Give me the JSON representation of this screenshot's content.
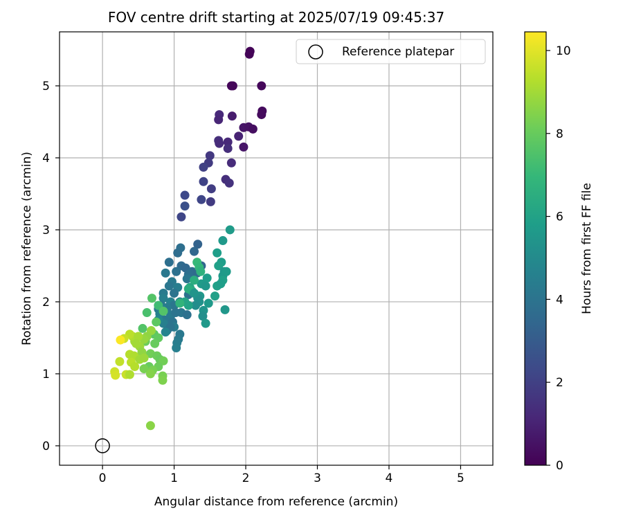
{
  "chart_data": {
    "type": "scatter",
    "title": "FOV centre drift starting at 2025/07/19 09:45:37",
    "xlabel": "Angular distance from reference (arcmin)",
    "ylabel": "Rotation from reference (arcmin)",
    "xlim": [
      -0.6,
      5.45
    ],
    "ylim": [
      -0.27,
      5.75
    ],
    "xticks": [
      0,
      1,
      2,
      3,
      4,
      5
    ],
    "yticks": [
      0,
      1,
      2,
      3,
      4,
      5
    ],
    "xtick_labels": [
      "0",
      "1",
      "2",
      "3",
      "4",
      "5"
    ],
    "ytick_labels": [
      "0",
      "1",
      "2",
      "3",
      "4",
      "5"
    ],
    "grid": true,
    "legend": {
      "placement": "top-right",
      "entries": [
        "Reference platepar"
      ]
    },
    "reference_point": {
      "name": "Reference platepar",
      "x": 0,
      "y": 0,
      "marker": "hollow-circle"
    },
    "colorbar": {
      "label": "Hours from first FF file",
      "min": 0,
      "max": 10.45,
      "ticks": [
        0,
        2,
        4,
        6,
        8,
        10
      ],
      "tick_labels": [
        "0",
        "2",
        "4",
        "6",
        "8",
        "10"
      ],
      "colormap": "viridis"
    },
    "series": [
      {
        "points": [
          [
            2.05,
            5.44,
            0.1
          ],
          [
            2.06,
            5.48,
            0.1
          ],
          [
            1.8,
            5.0,
            0.15
          ],
          [
            1.82,
            5.0,
            0.2
          ],
          [
            2.22,
            5.0,
            0.2
          ],
          [
            2.23,
            4.65,
            0.3
          ],
          [
            2.22,
            4.6,
            0.3
          ],
          [
            1.63,
            4.6,
            1.2
          ],
          [
            1.62,
            4.53,
            1.1
          ],
          [
            1.81,
            4.58,
            0.8
          ],
          [
            1.97,
            4.42,
            0.6
          ],
          [
            2.04,
            4.43,
            0.5
          ],
          [
            2.1,
            4.4,
            0.4
          ],
          [
            1.9,
            4.3,
            1.0
          ],
          [
            1.62,
            4.24,
            1.4
          ],
          [
            1.63,
            4.2,
            1.3
          ],
          [
            1.75,
            4.22,
            1.2
          ],
          [
            1.75,
            4.13,
            1.4
          ],
          [
            1.5,
            4.03,
            1.7
          ],
          [
            1.97,
            4.15,
            0.6
          ],
          [
            1.8,
            3.93,
            1.3
          ],
          [
            1.48,
            3.93,
            1.8
          ],
          [
            1.41,
            3.87,
            2.0
          ],
          [
            1.72,
            3.7,
            1.4
          ],
          [
            1.77,
            3.65,
            1.5
          ],
          [
            1.41,
            3.67,
            2.1
          ],
          [
            1.52,
            3.57,
            1.9
          ],
          [
            1.15,
            3.48,
            2.3
          ],
          [
            1.38,
            3.42,
            2.2
          ],
          [
            1.51,
            3.39,
            1.8
          ],
          [
            1.15,
            3.33,
            2.6
          ],
          [
            1.1,
            3.18,
            2.2
          ],
          [
            1.33,
            2.8,
            3.3
          ],
          [
            1.09,
            2.75,
            3.8
          ],
          [
            1.05,
            2.68,
            3.7
          ],
          [
            1.28,
            2.7,
            3.5
          ],
          [
            0.93,
            2.55,
            3.8
          ],
          [
            1.1,
            2.5,
            3.6
          ],
          [
            1.16,
            2.47,
            3.5
          ],
          [
            1.38,
            2.5,
            3.4
          ],
          [
            1.03,
            2.42,
            3.9
          ],
          [
            1.25,
            2.42,
            3.7
          ],
          [
            1.32,
            2.4,
            3.6
          ],
          [
            1.2,
            2.38,
            3.8
          ],
          [
            0.88,
            2.4,
            4.2
          ],
          [
            0.97,
            2.28,
            4.3
          ],
          [
            1.18,
            2.32,
            4.1
          ],
          [
            0.93,
            2.22,
            4.1
          ],
          [
            1.05,
            2.2,
            4.4
          ],
          [
            0.85,
            2.12,
            4.3
          ],
          [
            1.0,
            2.12,
            4.0
          ],
          [
            1.2,
            2.1,
            3.9
          ],
          [
            0.85,
            2.05,
            4.5
          ],
          [
            0.95,
            2.0,
            4.6
          ],
          [
            0.82,
            1.95,
            4.2
          ],
          [
            1.0,
            1.95,
            4.1
          ],
          [
            0.78,
            1.9,
            4.3
          ],
          [
            0.9,
            1.92,
            4.4
          ],
          [
            1.1,
            1.85,
            4.1
          ],
          [
            0.8,
            1.83,
            4.6
          ],
          [
            0.95,
            1.8,
            4.3
          ],
          [
            0.88,
            1.75,
            4.2
          ],
          [
            0.98,
            1.72,
            4.0
          ],
          [
            0.85,
            1.7,
            4.5
          ],
          [
            1.0,
            1.65,
            4.4
          ],
          [
            0.9,
            1.6,
            4.1
          ],
          [
            1.08,
            1.55,
            4.2
          ],
          [
            1.06,
            1.48,
            4.3
          ],
          [
            1.04,
            1.43,
            4.4
          ],
          [
            1.03,
            1.36,
            4.5
          ],
          [
            0.95,
            1.65,
            4.0
          ],
          [
            0.78,
            1.75,
            4.8
          ],
          [
            0.88,
            1.58,
            4.7
          ],
          [
            1.08,
            2.0,
            4.8
          ],
          [
            1.02,
            1.85,
            4.0
          ],
          [
            1.18,
            1.82,
            3.9
          ],
          [
            0.9,
            1.88,
            4.3
          ],
          [
            1.78,
            3.0,
            5.7
          ],
          [
            1.68,
            2.85,
            5.6
          ],
          [
            1.6,
            2.68,
            5.8
          ],
          [
            1.66,
            2.55,
            5.8
          ],
          [
            1.62,
            2.5,
            5.9
          ],
          [
            1.7,
            2.42,
            5.5
          ],
          [
            1.68,
            2.36,
            5.6
          ],
          [
            1.73,
            2.42,
            5.7
          ],
          [
            1.68,
            2.3,
            5.9
          ],
          [
            1.46,
            2.33,
            5.8
          ],
          [
            1.38,
            2.25,
            5.7
          ],
          [
            1.44,
            2.22,
            5.5
          ],
          [
            1.6,
            2.22,
            5.9
          ],
          [
            1.65,
            2.25,
            5.8
          ],
          [
            1.57,
            2.08,
            5.9
          ],
          [
            1.36,
            2.08,
            5.5
          ],
          [
            1.35,
            2.0,
            5.3
          ],
          [
            1.33,
            2.05,
            5.2
          ],
          [
            1.48,
            1.98,
            5.6
          ],
          [
            1.41,
            1.88,
            5.4
          ],
          [
            1.4,
            1.8,
            5.2
          ],
          [
            1.44,
            1.7,
            5.6
          ],
          [
            1.71,
            1.89,
            5.5
          ],
          [
            1.3,
            1.95,
            5.1
          ],
          [
            1.2,
            1.95,
            6.0
          ],
          [
            1.22,
            2.2,
            6.2
          ],
          [
            1.25,
            2.15,
            6.3
          ],
          [
            1.2,
            2.18,
            6.5
          ],
          [
            1.15,
            2.0,
            6.1
          ],
          [
            1.28,
            2.12,
            5.4
          ],
          [
            1.32,
            2.55,
            7.0
          ],
          [
            1.35,
            2.48,
            6.9
          ],
          [
            1.37,
            2.42,
            6.7
          ],
          [
            1.28,
            2.3,
            6.5
          ],
          [
            1.08,
            1.98,
            6.8
          ],
          [
            0.78,
            1.95,
            7.2
          ],
          [
            0.85,
            1.87,
            7.6
          ],
          [
            0.62,
            1.85,
            7.4
          ],
          [
            0.69,
            2.05,
            7.6
          ],
          [
            0.75,
            1.72,
            7.8
          ],
          [
            0.56,
            1.63,
            7.6
          ],
          [
            0.72,
            1.55,
            7.8
          ],
          [
            0.78,
            1.5,
            7.9
          ],
          [
            0.73,
            1.42,
            8.0
          ],
          [
            0.6,
            1.45,
            8.1
          ],
          [
            0.67,
            1.28,
            8.2
          ],
          [
            0.76,
            1.25,
            8.1
          ],
          [
            0.8,
            1.2,
            8.0
          ],
          [
            0.85,
            1.18,
            8.2
          ],
          [
            0.65,
            1.1,
            8.0
          ],
          [
            0.78,
            1.1,
            8.1
          ],
          [
            0.58,
            1.07,
            8.3
          ],
          [
            0.7,
            1.05,
            8.3
          ],
          [
            0.84,
            0.97,
            8.3
          ],
          [
            0.84,
            0.91,
            8.4
          ],
          [
            0.67,
            1.0,
            8.5
          ],
          [
            0.67,
            0.28,
            8.6
          ],
          [
            0.68,
            1.6,
            8.8
          ],
          [
            0.62,
            1.52,
            8.7
          ],
          [
            0.58,
            1.48,
            8.8
          ],
          [
            0.52,
            1.38,
            8.9
          ],
          [
            0.55,
            1.3,
            8.7
          ],
          [
            0.45,
            1.45,
            9.0
          ],
          [
            0.42,
            1.52,
            9.2
          ],
          [
            0.38,
            1.55,
            9.4
          ],
          [
            0.5,
            1.52,
            9.1
          ],
          [
            0.47,
            1.42,
            9.0
          ],
          [
            0.38,
            1.27,
            9.3
          ],
          [
            0.44,
            1.25,
            9.2
          ],
          [
            0.52,
            1.2,
            9.0
          ],
          [
            0.58,
            1.22,
            8.9
          ],
          [
            0.4,
            1.16,
            9.4
          ],
          [
            0.45,
            1.1,
            9.3
          ],
          [
            0.3,
            1.49,
            9.6
          ],
          [
            0.25,
            1.47,
            10.4
          ],
          [
            0.24,
            1.17,
            9.5
          ],
          [
            0.33,
            0.99,
            9.6
          ],
          [
            0.38,
            0.99,
            9.2
          ],
          [
            0.17,
            1.03,
            9.7
          ],
          [
            0.18,
            0.98,
            9.8
          ]
        ]
      }
    ]
  }
}
